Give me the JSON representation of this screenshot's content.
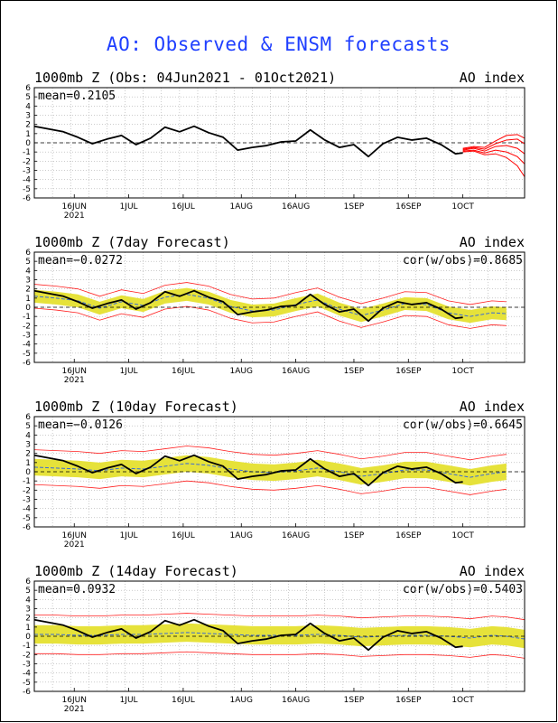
{
  "title": "AO: Observed & ENSM forecasts",
  "colors": {
    "title": "#1f3fff",
    "observed": "#000000",
    "ensemble_members": "#ff0000",
    "spread_band": "#e6e23a",
    "envelope": "#ff2020",
    "ensemble_mean": "#3a6bd6",
    "zero_line": "#000000"
  },
  "chart_data": [
    {
      "type": "line",
      "title": "1000mb Z (Obs: 04Jun2021 - 01Oct2021)",
      "right_label": "AO index",
      "mean_label": "mean=0.2105",
      "ylim": [
        -6,
        6
      ],
      "y_ticks": [
        6,
        5,
        4,
        3,
        2,
        1,
        0,
        -1,
        -2,
        -3,
        -4,
        -5,
        -6
      ],
      "x_ticks": [
        "16JUN",
        "1JUL",
        "16JUL",
        "1AUG",
        "16AUG",
        "1SEP",
        "16SEP",
        "1OCT"
      ],
      "x_sublabel": "2021",
      "x_range_days": [
        0,
        135
      ],
      "observed": {
        "x": [
          0,
          4,
          8,
          12,
          16,
          20,
          24,
          28,
          32,
          36,
          40,
          44,
          48,
          52,
          56,
          60,
          64,
          68,
          72,
          76,
          80,
          84,
          88,
          92,
          96,
          100,
          104,
          108,
          112,
          116,
          118
        ],
        "y": [
          1.8,
          1.5,
          1.2,
          0.6,
          -0.1,
          0.4,
          0.8,
          -0.2,
          0.5,
          1.7,
          1.2,
          1.8,
          1.1,
          0.6,
          -0.8,
          -0.5,
          -0.3,
          0.1,
          0.2,
          1.4,
          0.3,
          -0.5,
          -0.2,
          -1.5,
          -0.1,
          0.6,
          0.3,
          0.5,
          -0.2,
          -1.2,
          -1.1
        ]
      },
      "ensemble_members": [
        {
          "x": [
            118,
            121,
            124,
            127,
            130,
            133,
            135
          ],
          "y": [
            -0.6,
            -0.4,
            -0.5,
            0.2,
            0.8,
            0.9,
            0.5
          ]
        },
        {
          "x": [
            118,
            121,
            124,
            127,
            130,
            133,
            135
          ],
          "y": [
            -0.7,
            -0.5,
            -0.7,
            -0.1,
            0.3,
            0.4,
            -0.1
          ]
        },
        {
          "x": [
            118,
            121,
            124,
            127,
            130,
            133,
            135
          ],
          "y": [
            -0.8,
            -0.6,
            -0.9,
            -0.4,
            -0.3,
            -0.6,
            -1.2
          ]
        },
        {
          "x": [
            118,
            121,
            124,
            127,
            130,
            133,
            135
          ],
          "y": [
            -0.9,
            -0.8,
            -1.1,
            -0.8,
            -1.0,
            -1.5,
            -2.3
          ]
        },
        {
          "x": [
            118,
            121,
            124,
            127,
            130,
            133,
            135
          ],
          "y": [
            -1.0,
            -0.9,
            -1.3,
            -1.2,
            -1.6,
            -2.5,
            -3.7
          ]
        }
      ]
    },
    {
      "type": "line",
      "title": "1000mb Z (7day Forecast)",
      "right_label": "AO index",
      "mean_label": "mean=−0.0272",
      "cor_label": "cor(w/obs)=0.8685",
      "ylim": [
        -6,
        6
      ],
      "y_ticks": [
        6,
        5,
        4,
        3,
        2,
        1,
        0,
        -1,
        -2,
        -3,
        -4,
        -5,
        -6
      ],
      "x_ticks": [
        "16JUN",
        "1JUL",
        "16JUL",
        "1AUG",
        "16AUG",
        "1SEP",
        "16SEP",
        "1OCT"
      ],
      "x_sublabel": "2021",
      "x_range_days": [
        0,
        135
      ],
      "observed": {
        "x": [
          0,
          4,
          8,
          12,
          16,
          20,
          24,
          28,
          32,
          36,
          40,
          44,
          48,
          52,
          56,
          60,
          64,
          68,
          72,
          76,
          80,
          84,
          88,
          92,
          96,
          100,
          104,
          108,
          112,
          116,
          118
        ],
        "y": [
          1.8,
          1.5,
          1.2,
          0.6,
          -0.1,
          0.4,
          0.8,
          -0.2,
          0.5,
          1.7,
          1.2,
          1.8,
          1.1,
          0.6,
          -0.8,
          -0.5,
          -0.3,
          0.1,
          0.2,
          1.4,
          0.3,
          -0.5,
          -0.2,
          -1.5,
          -0.1,
          0.6,
          0.3,
          0.5,
          -0.2,
          -1.2,
          -1.1
        ]
      },
      "forecast_mean": {
        "x": [
          0,
          6,
          12,
          18,
          24,
          30,
          36,
          42,
          48,
          54,
          60,
          66,
          72,
          78,
          84,
          90,
          96,
          102,
          108,
          114,
          120,
          126,
          130
        ],
        "y": [
          1.2,
          1.0,
          0.7,
          -0.1,
          0.6,
          0.2,
          1.1,
          1.4,
          1.0,
          0.1,
          -0.4,
          -0.3,
          0.3,
          0.8,
          -0.2,
          -0.9,
          -0.3,
          0.4,
          0.3,
          -0.6,
          -1.0,
          -0.6,
          -0.7
        ]
      },
      "band_halfwidth": 0.7,
      "envelope_halfwidth": 1.3
    },
    {
      "type": "line",
      "title": "1000mb Z (10day Forecast)",
      "right_label": "AO index",
      "mean_label": "mean=−0.0126",
      "cor_label": "cor(w/obs)=0.6645",
      "ylim": [
        -6,
        6
      ],
      "y_ticks": [
        6,
        5,
        4,
        3,
        2,
        1,
        0,
        -1,
        -2,
        -3,
        -4,
        -5,
        -6
      ],
      "x_ticks": [
        "16JUN",
        "1JUL",
        "16JUL",
        "1AUG",
        "16AUG",
        "1SEP",
        "16SEP",
        "1OCT"
      ],
      "x_sublabel": "2021",
      "x_range_days": [
        0,
        135
      ],
      "observed": {
        "x": [
          0,
          4,
          8,
          12,
          16,
          20,
          24,
          28,
          32,
          36,
          40,
          44,
          48,
          52,
          56,
          60,
          64,
          68,
          72,
          76,
          80,
          84,
          88,
          92,
          96,
          100,
          104,
          108,
          112,
          116,
          118
        ],
        "y": [
          1.8,
          1.5,
          1.2,
          0.6,
          -0.1,
          0.4,
          0.8,
          -0.2,
          0.5,
          1.7,
          1.2,
          1.8,
          1.1,
          0.6,
          -0.8,
          -0.5,
          -0.3,
          0.1,
          0.2,
          1.4,
          0.3,
          -0.5,
          -0.2,
          -1.5,
          -0.1,
          0.6,
          0.3,
          0.5,
          -0.2,
          -1.2,
          -1.1
        ]
      },
      "forecast_mean": {
        "x": [
          0,
          6,
          12,
          18,
          24,
          30,
          36,
          42,
          48,
          54,
          60,
          66,
          72,
          78,
          84,
          90,
          96,
          102,
          108,
          114,
          120,
          126,
          130
        ],
        "y": [
          0.5,
          0.4,
          0.3,
          0.1,
          0.4,
          0.3,
          0.6,
          0.9,
          0.7,
          0.3,
          0.0,
          -0.1,
          0.1,
          0.4,
          0.0,
          -0.5,
          -0.2,
          0.2,
          0.2,
          -0.2,
          -0.6,
          -0.2,
          0.0
        ]
      },
      "band_halfwidth": 0.9,
      "envelope_halfwidth": 1.9
    },
    {
      "type": "line",
      "title": "1000mb Z (14day Forecast)",
      "right_label": "AO index",
      "mean_label": "mean=0.0932",
      "cor_label": "cor(w/obs)=0.5403",
      "ylim": [
        -6,
        6
      ],
      "y_ticks": [
        6,
        5,
        4,
        3,
        2,
        1,
        0,
        -1,
        -2,
        -3,
        -4,
        -5,
        -6
      ],
      "x_ticks": [
        "16JUN",
        "1JUL",
        "16JUL",
        "1AUG",
        "16AUG",
        "1SEP",
        "16SEP",
        "1OCT"
      ],
      "x_sublabel": "2021",
      "x_range_days": [
        0,
        135
      ],
      "observed": {
        "x": [
          0,
          4,
          8,
          12,
          16,
          20,
          24,
          28,
          32,
          36,
          40,
          44,
          48,
          52,
          56,
          60,
          64,
          68,
          72,
          76,
          80,
          84,
          88,
          92,
          96,
          100,
          104,
          108,
          112,
          116,
          118
        ],
        "y": [
          1.8,
          1.5,
          1.2,
          0.6,
          -0.1,
          0.4,
          0.8,
          -0.2,
          0.5,
          1.7,
          1.2,
          1.8,
          1.1,
          0.6,
          -0.8,
          -0.5,
          -0.3,
          0.1,
          0.2,
          1.4,
          0.3,
          -0.5,
          -0.2,
          -1.5,
          -0.1,
          0.6,
          0.3,
          0.5,
          -0.2,
          -1.2,
          -1.1
        ]
      },
      "forecast_mean": {
        "x": [
          0,
          6,
          12,
          18,
          24,
          30,
          36,
          42,
          48,
          54,
          60,
          66,
          72,
          78,
          84,
          90,
          96,
          102,
          108,
          114,
          120,
          126,
          130,
          135
        ],
        "y": [
          0.2,
          0.2,
          0.1,
          0.1,
          0.2,
          0.2,
          0.3,
          0.4,
          0.3,
          0.2,
          0.1,
          0.1,
          0.1,
          0.2,
          0.1,
          -0.1,
          0.0,
          0.1,
          0.1,
          0.0,
          -0.2,
          0.1,
          0.0,
          -0.3
        ]
      },
      "band_halfwidth": 1.0,
      "envelope_halfwidth": 2.1
    }
  ]
}
